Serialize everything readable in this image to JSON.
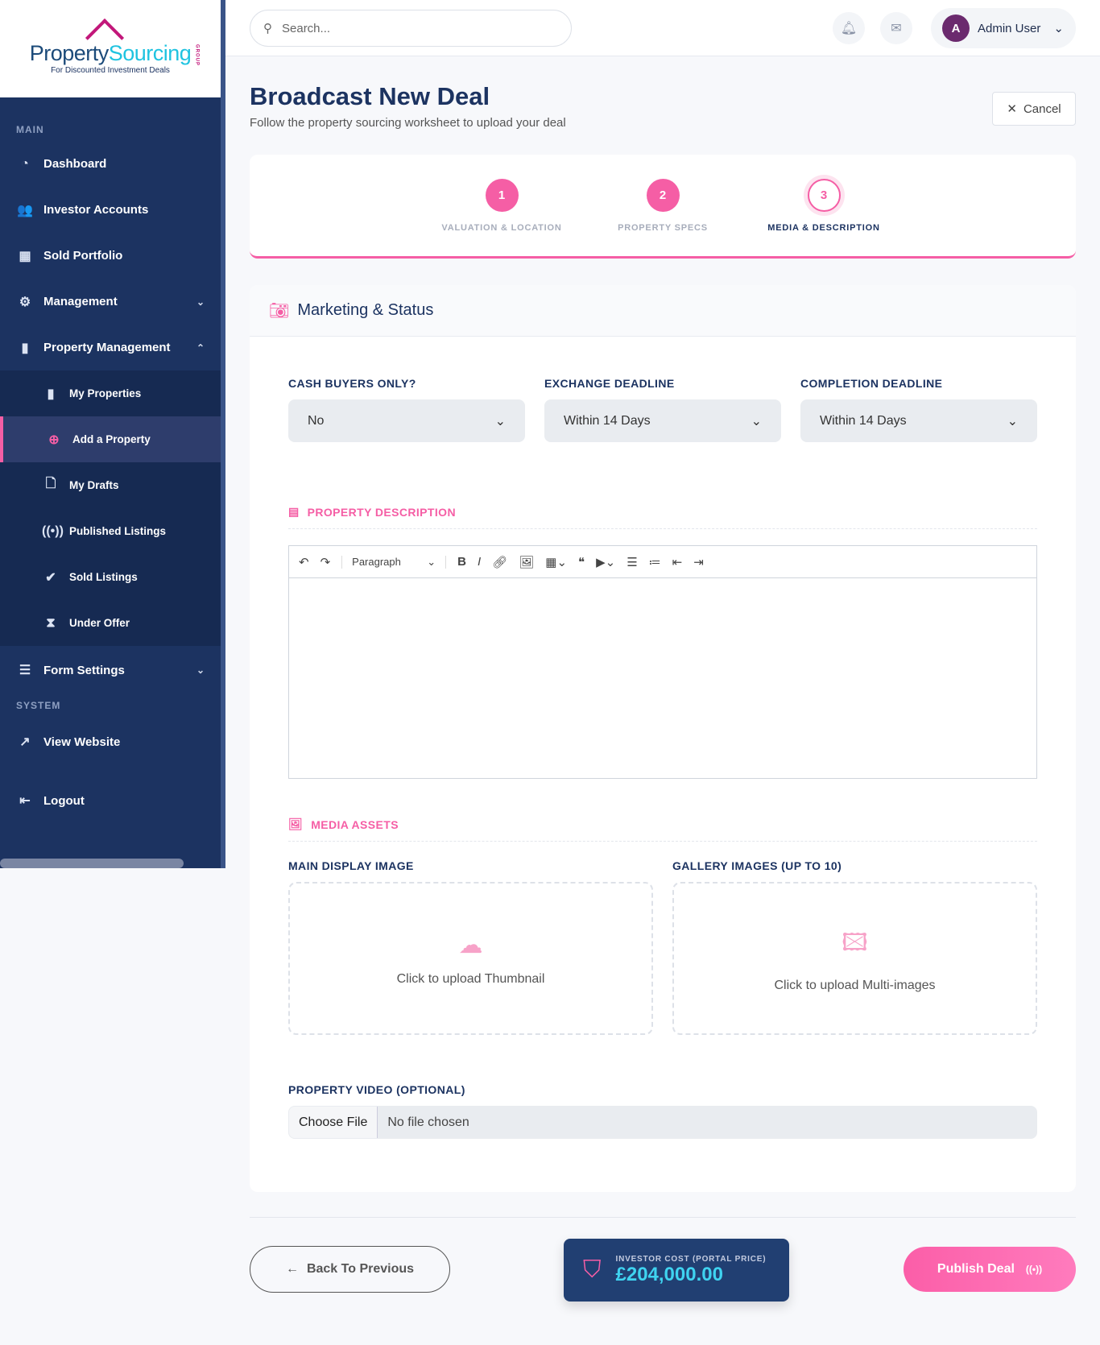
{
  "brand": {
    "name_part1": "Property",
    "name_part2": "Sourcing",
    "group": "GROUP",
    "tagline": "For Discounted Investment Deals"
  },
  "sidebar": {
    "section_main": "MAIN",
    "section_system": "SYSTEM",
    "items": [
      {
        "label": "Dashboard",
        "icon": "gauge-icon"
      },
      {
        "label": "Investor Accounts",
        "icon": "users-icon"
      },
      {
        "label": "Sold Portfolio",
        "icon": "building-icon"
      },
      {
        "label": "Management",
        "icon": "gear-icon"
      },
      {
        "label": "Property Management",
        "icon": "document-icon"
      }
    ],
    "sub_items": [
      {
        "label": "My Properties"
      },
      {
        "label": "Add a Property",
        "active": true
      },
      {
        "label": "My Drafts"
      },
      {
        "label": "Published Listings"
      },
      {
        "label": "Sold Listings"
      },
      {
        "label": "Under Offer"
      }
    ],
    "form_settings": "Form Settings",
    "view_website": "View Website",
    "logout": "Logout"
  },
  "topbar": {
    "search_placeholder": "Search...",
    "user_name": "Admin User",
    "avatar_letter": "A"
  },
  "page": {
    "title": "Broadcast New Deal",
    "subtitle": "Follow the property sourcing worksheet to upload your deal",
    "cancel": "Cancel"
  },
  "steps": [
    {
      "num": "1",
      "label": "VALUATION & LOCATION"
    },
    {
      "num": "2",
      "label": "PROPERTY SPECS"
    },
    {
      "num": "3",
      "label": "MEDIA & DESCRIPTION",
      "current": true
    }
  ],
  "form": {
    "heading": "Marketing & Status",
    "cash_label": "CASH BUYERS ONLY?",
    "cash_value": "No",
    "exchange_label": "EXCHANGE DEADLINE",
    "exchange_value": "Within 14 Days",
    "completion_label": "COMPLETION DEADLINE",
    "completion_value": "Within 14 Days",
    "desc_title": "PROPERTY DESCRIPTION",
    "paragraph": "Paragraph",
    "media_title": "MEDIA ASSETS",
    "main_image_label": "MAIN DISPLAY IMAGE",
    "main_image_text": "Click to upload Thumbnail",
    "gallery_label": "GALLERY IMAGES (UP TO 10)",
    "gallery_text": "Click to upload Multi-images",
    "video_label": "PROPERTY VIDEO (OPTIONAL)",
    "choose_file": "Choose File",
    "no_file": "No file chosen"
  },
  "footer": {
    "back": "Back To Previous",
    "cost_label": "INVESTOR COST (PORTAL PRICE)",
    "cost_value": "£204,000.00",
    "publish": "Publish Deal"
  },
  "colors": {
    "accent": "#f55ea5",
    "navy": "#1c3361",
    "cyan": "#3fd3f0"
  }
}
